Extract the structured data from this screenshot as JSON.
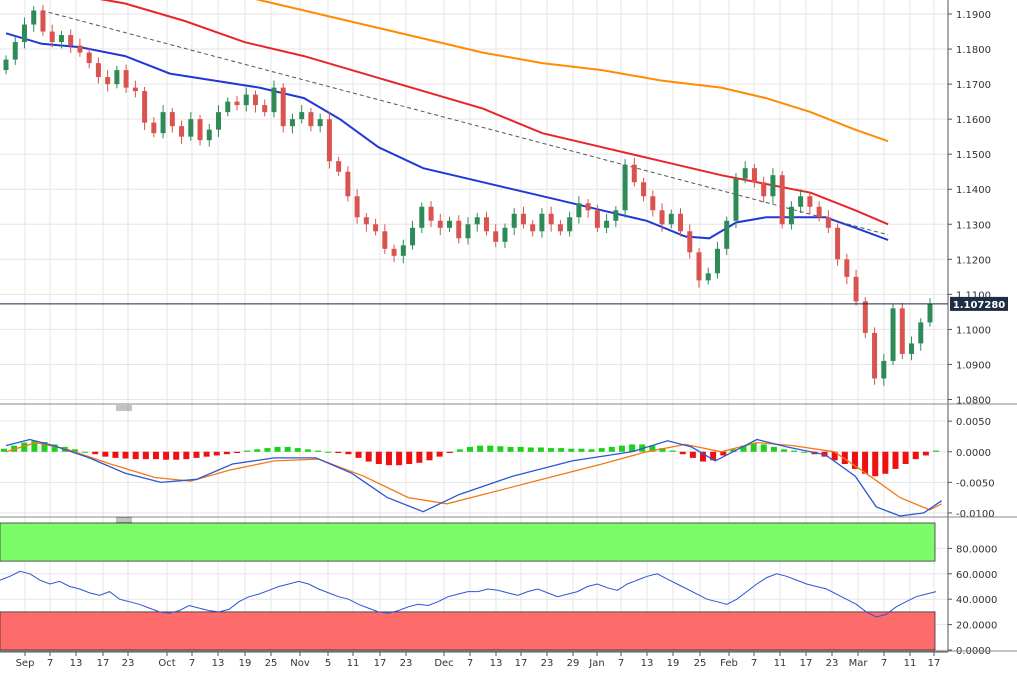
{
  "chart_data": [
    {
      "type": "candlestick",
      "title": "",
      "pair_last_price": "1.107280",
      "y_ticks": [
        "1.1900",
        "1.1800",
        "1.1700",
        "1.1600",
        "1.1500",
        "1.1400",
        "1.1300",
        "1.1200",
        "1.1100",
        "1.1000",
        "1.0900",
        "1.0800"
      ],
      "ylim": [
        1.079,
        1.194
      ],
      "x_labels": [
        "Sep",
        "7",
        "13",
        "17",
        "23",
        "Oct",
        "7",
        "13",
        "19",
        "25",
        "Nov",
        "5",
        "11",
        "17",
        "23",
        "Dec",
        "7",
        "13",
        "17",
        "23",
        "29",
        "Jan",
        "7",
        "13",
        "19",
        "25",
        "Feb",
        "7",
        "11",
        "17",
        "23",
        "Mar",
        "7",
        "11",
        "17"
      ],
      "colors": {
        "up": "#2e8b57",
        "down": "#d9534f",
        "ma_fast": "#e8262a",
        "ma_mid": "#2138d8",
        "ma_slow": "#ff8c00",
        "trendline": "#555555"
      },
      "moving_averages": [
        {
          "color": "#2138d8",
          "points": [
            [
              0,
              1.1845
            ],
            [
              12,
              1.1815
            ],
            [
              25,
              1.1805
            ],
            [
              40,
              1.178
            ],
            [
              55,
              1.173
            ],
            [
              70,
              1.171
            ],
            [
              85,
              1.169
            ],
            [
              100,
              1.166
            ],
            [
              112,
              1.16
            ],
            [
              125,
              1.152
            ],
            [
              140,
              1.146
            ],
            [
              155,
              1.143
            ],
            [
              170,
              1.14
            ],
            [
              185,
              1.137
            ],
            [
              200,
              1.134
            ],
            [
              215,
              1.131
            ],
            [
              228,
              1.1265
            ],
            [
              236,
              1.126
            ],
            [
              245,
              1.1305
            ],
            [
              255,
              1.132
            ],
            [
              264,
              1.132
            ],
            [
              275,
              1.132
            ],
            [
              285,
              1.129
            ],
            [
              296,
              1.1255
            ]
          ]
        },
        {
          "color": "#e8262a",
          "points": [
            [
              0,
              1.199
            ],
            [
              20,
              1.196
            ],
            [
              40,
              1.193
            ],
            [
              60,
              1.188
            ],
            [
              80,
              1.182
            ],
            [
              100,
              1.178
            ],
            [
              120,
              1.173
            ],
            [
              140,
              1.168
            ],
            [
              160,
              1.163
            ],
            [
              180,
              1.156
            ],
            [
              200,
              1.152
            ],
            [
              220,
              1.148
            ],
            [
              240,
              1.144
            ],
            [
              255,
              1.1415
            ],
            [
              270,
              1.139
            ],
            [
              285,
              1.134
            ],
            [
              296,
              1.13
            ]
          ]
        },
        {
          "color": "#ff8c00",
          "points": [
            [
              60,
              1.1985
            ],
            [
              80,
              1.195
            ],
            [
              100,
              1.191
            ],
            [
              120,
              1.187
            ],
            [
              140,
              1.183
            ],
            [
              160,
              1.179
            ],
            [
              180,
              1.176
            ],
            [
              200,
              1.174
            ],
            [
              220,
              1.171
            ],
            [
              240,
              1.169
            ],
            [
              255,
              1.166
            ],
            [
              270,
              1.162
            ],
            [
              285,
              1.157
            ],
            [
              296,
              1.1537
            ]
          ]
        }
      ],
      "trendline": {
        "points": [
          [
            12,
            1.191
          ],
          [
            296,
            1.127
          ]
        ]
      },
      "candles_coarse": [
        [
          1.174,
          1.177
        ],
        [
          1.177,
          1.182
        ],
        [
          1.182,
          1.187
        ],
        [
          1.187,
          1.191
        ],
        [
          1.191,
          1.185
        ],
        [
          1.185,
          1.182
        ],
        [
          1.182,
          1.184
        ],
        [
          1.184,
          1.181
        ],
        [
          1.181,
          1.179
        ],
        [
          1.179,
          1.176
        ],
        [
          1.176,
          1.172
        ],
        [
          1.172,
          1.17
        ],
        [
          1.17,
          1.174
        ],
        [
          1.174,
          1.169
        ],
        [
          1.169,
          1.168
        ],
        [
          1.168,
          1.159
        ],
        [
          1.159,
          1.156
        ],
        [
          1.156,
          1.162
        ],
        [
          1.162,
          1.158
        ],
        [
          1.158,
          1.155
        ],
        [
          1.155,
          1.16
        ],
        [
          1.16,
          1.154
        ],
        [
          1.154,
          1.157
        ],
        [
          1.157,
          1.162
        ],
        [
          1.162,
          1.165
        ],
        [
          1.165,
          1.164
        ],
        [
          1.164,
          1.167
        ],
        [
          1.167,
          1.164
        ],
        [
          1.164,
          1.162
        ],
        [
          1.162,
          1.169
        ],
        [
          1.169,
          1.158
        ],
        [
          1.158,
          1.16
        ],
        [
          1.16,
          1.162
        ],
        [
          1.162,
          1.158
        ],
        [
          1.158,
          1.16
        ],
        [
          1.16,
          1.148
        ],
        [
          1.148,
          1.145
        ],
        [
          1.145,
          1.138
        ],
        [
          1.138,
          1.132
        ],
        [
          1.132,
          1.13
        ],
        [
          1.13,
          1.128
        ],
        [
          1.128,
          1.123
        ],
        [
          1.123,
          1.121
        ],
        [
          1.121,
          1.124
        ],
        [
          1.124,
          1.129
        ],
        [
          1.129,
          1.135
        ],
        [
          1.135,
          1.131
        ],
        [
          1.131,
          1.129
        ],
        [
          1.129,
          1.131
        ],
        [
          1.131,
          1.126
        ],
        [
          1.126,
          1.13
        ],
        [
          1.13,
          1.132
        ],
        [
          1.132,
          1.128
        ],
        [
          1.128,
          1.125
        ],
        [
          1.125,
          1.129
        ],
        [
          1.129,
          1.133
        ],
        [
          1.133,
          1.13
        ],
        [
          1.13,
          1.128
        ],
        [
          1.128,
          1.133
        ],
        [
          1.133,
          1.13
        ],
        [
          1.13,
          1.128
        ],
        [
          1.128,
          1.132
        ],
        [
          1.132,
          1.136
        ],
        [
          1.136,
          1.134
        ],
        [
          1.134,
          1.129
        ],
        [
          1.129,
          1.131
        ],
        [
          1.131,
          1.134
        ],
        [
          1.134,
          1.147
        ],
        [
          1.147,
          1.142
        ],
        [
          1.142,
          1.138
        ],
        [
          1.138,
          1.134
        ],
        [
          1.134,
          1.13
        ],
        [
          1.13,
          1.133
        ],
        [
          1.133,
          1.128
        ],
        [
          1.128,
          1.122
        ],
        [
          1.122,
          1.114
        ],
        [
          1.114,
          1.116
        ],
        [
          1.116,
          1.123
        ],
        [
          1.123,
          1.131
        ],
        [
          1.131,
          1.143
        ],
        [
          1.143,
          1.146
        ],
        [
          1.146,
          1.142
        ],
        [
          1.142,
          1.138
        ],
        [
          1.138,
          1.144
        ],
        [
          1.144,
          1.13
        ],
        [
          1.13,
          1.135
        ],
        [
          1.135,
          1.138
        ],
        [
          1.138,
          1.135
        ],
        [
          1.135,
          1.132
        ],
        [
          1.132,
          1.129
        ],
        [
          1.129,
          1.12
        ],
        [
          1.12,
          1.115
        ],
        [
          1.115,
          1.108
        ],
        [
          1.108,
          1.099
        ],
        [
          1.099,
          1.086
        ],
        [
          1.086,
          1.091
        ],
        [
          1.091,
          1.106
        ],
        [
          1.106,
          1.093
        ],
        [
          1.093,
          1.096
        ],
        [
          1.096,
          1.102
        ],
        [
          1.102,
          1.1073
        ]
      ]
    },
    {
      "type": "macd",
      "y_ticks": [
        "0.0050",
        "0.0000",
        "-0.0050",
        "-0.0100"
      ],
      "ylim": [
        -0.0105,
        0.0065
      ],
      "histogram": [
        0.0005,
        0.001,
        0.0015,
        0.0018,
        0.0016,
        0.0012,
        0.0008,
        0.0004,
        0.0,
        -0.0004,
        -0.0008,
        -0.001,
        -0.0011,
        -0.0012,
        -0.0012,
        -0.0012,
        -0.0013,
        -0.0013,
        -0.0012,
        -0.001,
        -0.0008,
        -0.0006,
        -0.0004,
        -0.0002,
        0.0002,
        0.0004,
        0.0006,
        0.0008,
        0.0008,
        0.0006,
        0.0004,
        0.0002,
        0.0,
        -0.0002,
        -0.0004,
        -0.001,
        -0.0016,
        -0.002,
        -0.0022,
        -0.0022,
        -0.002,
        -0.0018,
        -0.0014,
        -0.0008,
        -0.0002,
        0.0004,
        0.0008,
        0.001,
        0.001,
        0.0009,
        0.0008,
        0.0008,
        0.0007,
        0.0007,
        0.0006,
        0.0006,
        0.0005,
        0.0005,
        0.0004,
        0.0006,
        0.0008,
        0.001,
        0.0012,
        0.0012,
        0.001,
        0.0006,
        0.0002,
        -0.0004,
        -0.001,
        -0.0016,
        -0.0014,
        -0.0006,
        0.0004,
        0.001,
        0.0014,
        0.0012,
        0.0008,
        0.0004,
        0.0002,
        0.0,
        -0.0004,
        -0.0008,
        -0.0014,
        -0.002,
        -0.0028,
        -0.0036,
        -0.004,
        -0.0036,
        -0.0028,
        -0.002,
        -0.0012,
        -0.0006,
        0.0002
      ],
      "macd_line": [
        [
          0,
          0.001
        ],
        [
          8,
          0.002
        ],
        [
          16,
          0.001
        ],
        [
          28,
          -0.001
        ],
        [
          40,
          -0.0035
        ],
        [
          52,
          -0.005
        ],
        [
          64,
          -0.0045
        ],
        [
          76,
          -0.002
        ],
        [
          90,
          -0.001
        ],
        [
          104,
          -0.001
        ],
        [
          116,
          -0.0035
        ],
        [
          128,
          -0.0075
        ],
        [
          140,
          -0.0098
        ],
        [
          152,
          -0.007
        ],
        [
          170,
          -0.004
        ],
        [
          190,
          -0.0015
        ],
        [
          210,
          0.0
        ],
        [
          222,
          0.0018
        ],
        [
          230,
          0.0008
        ],
        [
          238,
          -0.0015
        ],
        [
          246,
          0.0005
        ],
        [
          252,
          0.002
        ],
        [
          262,
          0.0008
        ],
        [
          275,
          -0.0005
        ],
        [
          285,
          -0.004
        ],
        [
          292,
          -0.009
        ],
        [
          300,
          -0.0105
        ],
        [
          308,
          -0.01
        ],
        [
          314,
          -0.008
        ]
      ],
      "signal_line": [
        [
          0,
          0.0
        ],
        [
          10,
          0.0015
        ],
        [
          20,
          0.0005
        ],
        [
          35,
          -0.002
        ],
        [
          50,
          -0.0042
        ],
        [
          62,
          -0.0048
        ],
        [
          75,
          -0.003
        ],
        [
          90,
          -0.0015
        ],
        [
          105,
          -0.0012
        ],
        [
          120,
          -0.004
        ],
        [
          135,
          -0.0075
        ],
        [
          148,
          -0.0085
        ],
        [
          160,
          -0.007
        ],
        [
          180,
          -0.0045
        ],
        [
          200,
          -0.002
        ],
        [
          215,
          0.0
        ],
        [
          228,
          0.0012
        ],
        [
          240,
          0.0
        ],
        [
          252,
          0.0015
        ],
        [
          264,
          0.001
        ],
        [
          278,
          0.0
        ],
        [
          290,
          -0.004
        ],
        [
          300,
          -0.0075
        ],
        [
          310,
          -0.0095
        ],
        [
          314,
          -0.0085
        ]
      ]
    },
    {
      "type": "rsi",
      "y_ticks": [
        "80.0000",
        "60.0000",
        "40.0000",
        "20.0000",
        "0.0000"
      ],
      "ylim": [
        0,
        100
      ],
      "overbought": 70,
      "oversold": 30,
      "overbought_color": "#7dfc6a",
      "oversold_color": "#fd6b6b",
      "line_color": "#2d55d6",
      "values": [
        55,
        58,
        62,
        60,
        55,
        52,
        54,
        50,
        48,
        45,
        43,
        46,
        40,
        38,
        36,
        33,
        30,
        29,
        31,
        35,
        33,
        31,
        30,
        32,
        38,
        42,
        44,
        47,
        50,
        52,
        54,
        52,
        48,
        45,
        42,
        40,
        36,
        33,
        30,
        29,
        31,
        34,
        36,
        35,
        38,
        42,
        44,
        46,
        46,
        48,
        47,
        45,
        43,
        46,
        48,
        45,
        42,
        44,
        46,
        50,
        52,
        49,
        47,
        52,
        55,
        58,
        60,
        56,
        52,
        48,
        44,
        40,
        38,
        36,
        40,
        46,
        52,
        57,
        60,
        58,
        55,
        52,
        50,
        48,
        44,
        40,
        36,
        30,
        26,
        28,
        34,
        38,
        42,
        44,
        46
      ]
    }
  ]
}
